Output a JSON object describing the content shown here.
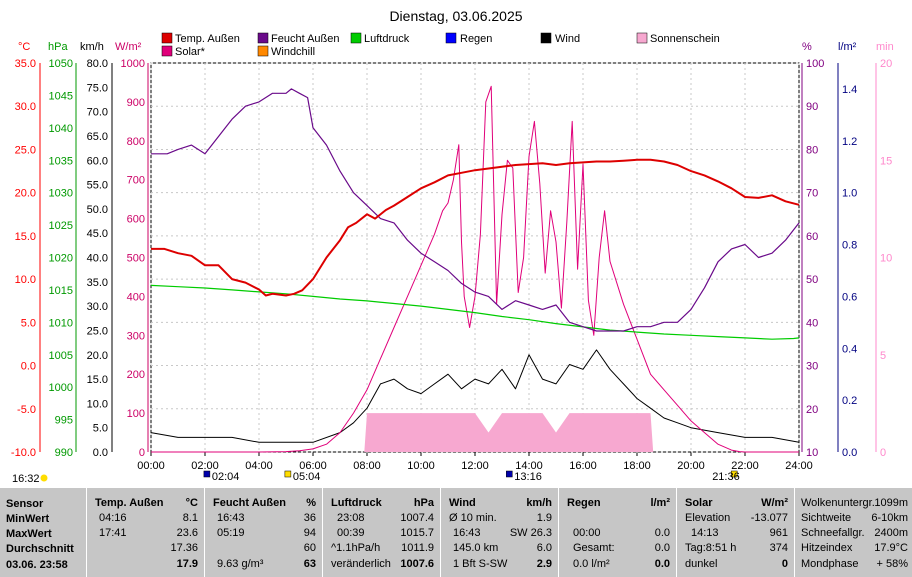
{
  "title": "Dienstag, 03.06.2025",
  "colors": {
    "temp": "#dd0000",
    "humidity": "#6a0a8a",
    "pressure": "#00cc00",
    "rain": "#0000ff",
    "wind": "#000000",
    "sun": "#f7a8d0",
    "solar": "#e0007a",
    "windchill": "#ff8800",
    "tempAxis": "#ff0000",
    "pressureAxis": "#009900",
    "humAxis": "#800080",
    "rainAxis": "#000080",
    "sunAxis": "#ff88cc"
  },
  "axis_units": {
    "temp": "°C",
    "pressure": "hPa",
    "wind": "km/h",
    "solar": "W/m²",
    "humidity": "%",
    "rain": "l/m²",
    "sun": "min"
  },
  "chart_data": {
    "type": "line",
    "title": "Dienstag, 03.06.2025",
    "x_label": "",
    "x_ticks": [
      "00:00",
      "02:00",
      "04:00",
      "06:00",
      "08:00",
      "10:00",
      "12:00",
      "14:00",
      "16:00",
      "18:00",
      "20:00",
      "22:00",
      "24:00"
    ],
    "x_range_hours": [
      0,
      24
    ],
    "legend": [
      {
        "name": "Temp. Außen",
        "color": "#dd0000"
      },
      {
        "name": "Feucht Außen",
        "color": "#6a0a8a"
      },
      {
        "name": "Luftdruck",
        "color": "#00cc00"
      },
      {
        "name": "Regen",
        "color": "#0000ff"
      },
      {
        "name": "Wind",
        "color": "#000000"
      },
      {
        "name": "Sonnenschein",
        "color": "#f7a8d0"
      },
      {
        "name": "Solar*",
        "color": "#e0007a"
      },
      {
        "name": "Windchill",
        "color": "#ff8800"
      }
    ],
    "axes": {
      "temp": {
        "range": [
          -10,
          35
        ],
        "ticks": [
          "35.0",
          "30.0",
          "25.0",
          "20.0",
          "15.0",
          "10.0",
          "5.0",
          "0.0",
          "-5.0",
          "-10.0"
        ]
      },
      "pressure": {
        "range": [
          990,
          1050
        ],
        "ticks": [
          "1050",
          "1045",
          "1040",
          "1035",
          "1030",
          "1025",
          "1020",
          "1015",
          "1010",
          "1005",
          "1000",
          "995",
          "990"
        ]
      },
      "wind": {
        "range": [
          0,
          80
        ],
        "ticks": [
          "80.0",
          "75.0",
          "70.0",
          "65.0",
          "60.0",
          "55.0",
          "50.0",
          "45.0",
          "40.0",
          "35.0",
          "30.0",
          "25.0",
          "20.0",
          "15.0",
          "10.0",
          "5.0",
          "0.0"
        ]
      },
      "solar": {
        "range": [
          0,
          1000
        ],
        "ticks": [
          "1000",
          "900",
          "800",
          "700",
          "600",
          "500",
          "400",
          "300",
          "200",
          "100",
          "0"
        ]
      },
      "humidity": {
        "range": [
          10,
          100
        ],
        "ticks": [
          "100",
          "90",
          "80",
          "70",
          "60",
          "50",
          "40",
          "30",
          "20",
          "10"
        ]
      },
      "rain": {
        "range": [
          0,
          1.5
        ],
        "ticks": [
          "1.4",
          "1.2",
          "1.0",
          "0.8",
          "0.6",
          "0.4",
          "0.2",
          "0.0"
        ]
      },
      "sun": {
        "range": [
          0,
          20
        ],
        "ticks": [
          "20",
          "15",
          "10",
          "5",
          "0"
        ]
      }
    },
    "series": [
      {
        "name": "Temp. Außen",
        "axis": "temp",
        "x": [
          0,
          0.5,
          1,
          1.5,
          2,
          2.5,
          3,
          3.5,
          4,
          4.25,
          4.5,
          5,
          5.3,
          5.6,
          6,
          6.5,
          7,
          7.3,
          7.6,
          8,
          8.3,
          8.7,
          9,
          9.5,
          10,
          10.5,
          11,
          11.5,
          12,
          12.5,
          13,
          13.5,
          14,
          14.5,
          15,
          15.5,
          16,
          16.5,
          17,
          17.5,
          18,
          18.5,
          19,
          19.5,
          20,
          20.5,
          21,
          21.5,
          22,
          22.5,
          23,
          23.5,
          24
        ],
        "y": [
          13.5,
          13.5,
          13.0,
          12.7,
          11.6,
          11.6,
          10.0,
          9.6,
          8.8,
          8.1,
          8.3,
          8.1,
          8.3,
          8.7,
          10.0,
          12.5,
          14.5,
          16.0,
          16.5,
          17.5,
          17.0,
          18.0,
          18.5,
          19.5,
          20.5,
          21.2,
          22.0,
          22.3,
          22.6,
          22.8,
          23.0,
          23.2,
          23.3,
          23.4,
          23.2,
          23.4,
          23.5,
          23.6,
          23.6,
          23.7,
          23.8,
          23.8,
          23.6,
          23.2,
          22.5,
          22.0,
          21.3,
          20.5,
          19.5,
          19.4,
          19.7,
          19.0,
          18.6
        ]
      },
      {
        "name": "Feucht Außen",
        "axis": "humidity",
        "x": [
          0,
          0.6,
          1,
          1.5,
          2,
          2.5,
          3,
          3.5,
          4,
          4.5,
          5,
          5.2,
          5.5,
          5.8,
          6,
          6.5,
          7,
          7.5,
          8,
          8.5,
          9,
          9.5,
          10,
          10.5,
          11,
          11.5,
          12,
          12.5,
          13,
          13.5,
          14,
          14.5,
          15,
          15.5,
          16,
          16.5,
          17,
          17.5,
          18,
          18.5,
          19,
          19.5,
          20,
          20.5,
          21,
          21.5,
          22,
          22.5,
          23,
          23.5,
          24
        ],
        "y": [
          79,
          79,
          80,
          81,
          79,
          83,
          87,
          90,
          91,
          93,
          93,
          94,
          93,
          92,
          85,
          81,
          75,
          70,
          67,
          64,
          63,
          59,
          56,
          54,
          52,
          49,
          47,
          46,
          43,
          45,
          44,
          43,
          44,
          40,
          39,
          38,
          38,
          38,
          39,
          39,
          40,
          40,
          43,
          48,
          54,
          57,
          58,
          55,
          56,
          59,
          63
        ]
      },
      {
        "name": "Luftdruck",
        "axis": "pressure",
        "x": [
          0,
          1,
          2,
          3,
          4,
          5,
          6,
          7,
          8,
          9,
          10,
          11,
          12,
          13,
          14,
          15,
          16,
          17,
          18,
          19,
          20,
          21,
          22,
          23,
          23.8,
          24
        ],
        "y": [
          1015.7,
          1015.5,
          1015.3,
          1015.0,
          1014.7,
          1014.4,
          1014.0,
          1013.6,
          1013.3,
          1012.9,
          1012.5,
          1012.0,
          1011.5,
          1010.9,
          1010.4,
          1009.8,
          1009.3,
          1008.8,
          1008.5,
          1008.2,
          1008.0,
          1007.8,
          1007.6,
          1007.4,
          1007.5,
          1007.6
        ]
      },
      {
        "name": "Solar*",
        "axis": "solar",
        "x": [
          0,
          4,
          5,
          5.5,
          6,
          6.5,
          7,
          7.5,
          8,
          8.5,
          9,
          9.5,
          10,
          10.5,
          10.8,
          11,
          11.2,
          11.4,
          11.5,
          11.6,
          11.8,
          12,
          12.2,
          12.4,
          12.6,
          12.8,
          13,
          13.2,
          13.4,
          13.6,
          13.8,
          14,
          14.2,
          14.4,
          14.6,
          14.8,
          15,
          15.2,
          15.4,
          15.6,
          15.8,
          16,
          16.2,
          16.4,
          16.6,
          16.8,
          17,
          17.5,
          18,
          18.5,
          19,
          19.5,
          20,
          20.5,
          21,
          21.5,
          21.8,
          22,
          24
        ],
        "y": [
          0,
          0,
          1,
          3,
          8,
          20,
          50,
          100,
          160,
          240,
          320,
          400,
          480,
          560,
          620,
          640,
          700,
          790,
          540,
          400,
          320,
          400,
          560,
          900,
          940,
          380,
          610,
          750,
          730,
          410,
          500,
          760,
          850,
          690,
          460,
          620,
          540,
          370,
          590,
          850,
          470,
          740,
          390,
          300,
          500,
          620,
          490,
          380,
          290,
          200,
          160,
          120,
          80,
          50,
          20,
          5,
          1,
          0,
          0
        ]
      },
      {
        "name": "Wind",
        "axis": "wind",
        "x": [
          0,
          1,
          2,
          3,
          4,
          5,
          6,
          7,
          7.5,
          8,
          8.5,
          9,
          9.5,
          10,
          10.5,
          11,
          11.5,
          12,
          12.5,
          13,
          13.5,
          14,
          14.5,
          15,
          15.5,
          16,
          16.5,
          17,
          17.5,
          18,
          18.5,
          19,
          19.5,
          20,
          21,
          22,
          23,
          24
        ],
        "y": [
          4,
          3,
          3,
          3,
          2,
          2,
          2,
          4,
          6,
          9,
          14,
          15,
          13,
          12,
          14,
          16,
          13,
          15,
          14,
          17,
          13,
          20,
          15,
          14,
          18,
          17,
          21,
          17,
          14,
          11,
          9,
          7,
          6,
          5,
          4,
          3,
          3,
          2
        ]
      },
      {
        "name": "Sonnenschein",
        "axis": "sun",
        "x": [
          0,
          7.9,
          8,
          8.5,
          9,
          10,
          11,
          11.5,
          12,
          12.5,
          13,
          13.5,
          14,
          14.5,
          15,
          15.5,
          16,
          16.5,
          17,
          17.5,
          18,
          18.5,
          18.6,
          24
        ],
        "y": [
          0,
          0,
          2,
          2,
          2,
          2,
          2,
          2,
          2,
          1,
          2,
          2,
          2,
          2,
          1,
          2,
          2,
          2,
          2,
          2,
          2,
          2,
          0,
          0
        ]
      }
    ],
    "markers": [
      {
        "label": "02:04",
        "axis": "x"
      },
      {
        "label": "05:04",
        "axis": "x"
      },
      {
        "label": "13:16",
        "axis": "x"
      },
      {
        "label": "21:36",
        "axis": "x"
      }
    ],
    "corner_label": "16:32"
  },
  "stats": {
    "labels": {
      "sensor": "Sensor",
      "min": "MinWert",
      "max": "MaxWert",
      "avg": "Durchschnitt",
      "now": "03.06. 23:58"
    },
    "temp": {
      "header": "Temp. Außen",
      "unit": "°C",
      "min_time": "04:16",
      "min_val": "8.1",
      "max_time": "17:41",
      "max_val": "23.6",
      "avg": "17.36",
      "now": "17.9"
    },
    "hum": {
      "header": "Feucht Außen",
      "unit": "%",
      "min_time": "16:43",
      "min_val": "36",
      "max_time": "05:19",
      "max_val": "94",
      "avg": "60",
      "abs": "9.63 g/m³",
      "now": "63"
    },
    "press": {
      "header": "Luftdruck",
      "unit": "hPa",
      "min_time": "23:08",
      "min_val": "1007.4",
      "max_time": "00:39",
      "max_val": "1015.7",
      "trend": "^1.1hPa/h",
      "avg": "1011.9",
      "state": "veränderlich",
      "now": "1007.6"
    },
    "wind": {
      "header": "Wind",
      "unit": "km/h",
      "r1_label": "Ø 10 min.",
      "r1_val": "1.9",
      "r2_time": "16:43",
      "r2_label": "SW 26.3",
      "r3_label": "145.0 km",
      "r3_val": "6.0",
      "r4_label": "1 Bft S-SW",
      "now": "2.9"
    },
    "rain": {
      "header": "Regen",
      "unit": "l/m²",
      "r2_time": "00:00",
      "r2_val": "0.0",
      "r3_label": "Gesamt:",
      "r3_val": "0.0",
      "r4_label": "0.0 l/m²",
      "now": "0.0"
    },
    "solar": {
      "header": "Solar",
      "unit": "W/m²",
      "r1_label": "Elevation",
      "r1_val": "-13.077",
      "r2_time": "14:13",
      "r2_val": "961",
      "r3_label": "Tag:8:51 h",
      "r3_val": "374",
      "r4_label": "dunkel",
      "now": "0"
    },
    "extra": [
      {
        "label": "Wolkenuntergr.",
        "val": "1099m"
      },
      {
        "label": "Sichtweite",
        "val": "6-10km"
      },
      {
        "label": "Schneefallgr.",
        "val": "2400m"
      },
      {
        "label": "Hitzeindex",
        "val": "17.9°C"
      },
      {
        "label": "Mondphase",
        "val": "+ 58%"
      }
    ]
  }
}
